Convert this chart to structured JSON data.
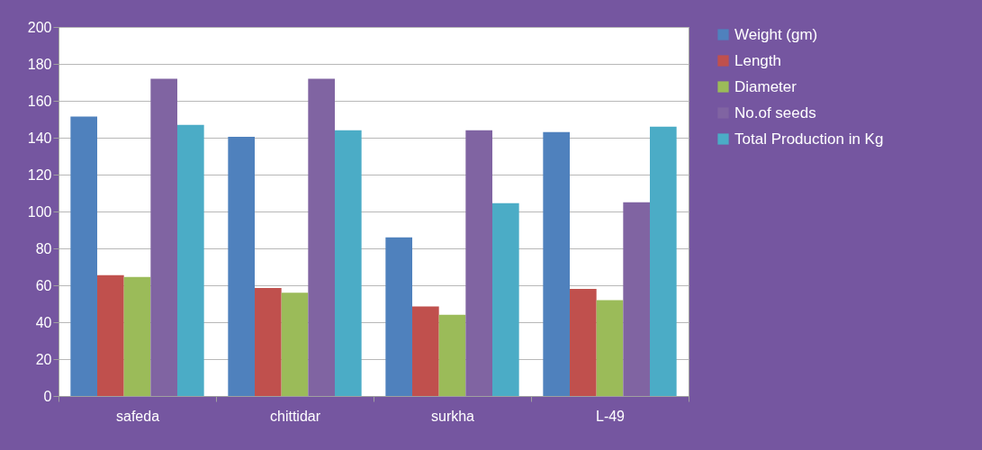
{
  "chart_data": {
    "type": "bar",
    "categories": [
      "safeda",
      "chittidar",
      "surkha",
      "L-49"
    ],
    "series": [
      {
        "name": "Weight (gm)",
        "color": "#4f81bd",
        "values": [
          151.5,
          140.5,
          86,
          143
        ]
      },
      {
        "name": "Length",
        "color": "#c0504d",
        "values": [
          65.5,
          58.5,
          48.5,
          58
        ]
      },
      {
        "name": "Diameter",
        "color": "#9bbb59",
        "values": [
          64.5,
          56,
          44,
          52
        ]
      },
      {
        "name": "No.of seeds",
        "color": "#8064a2",
        "values": [
          172,
          172,
          144,
          105
        ]
      },
      {
        "name": "Total Production in Kg",
        "color": "#4bacc6",
        "values": [
          147,
          144,
          104.5,
          146
        ]
      }
    ],
    "ylim": [
      0,
      200
    ],
    "yticks": [
      0,
      20,
      40,
      60,
      80,
      100,
      120,
      140,
      160,
      180,
      200
    ],
    "grid": "y",
    "legend": "right"
  }
}
